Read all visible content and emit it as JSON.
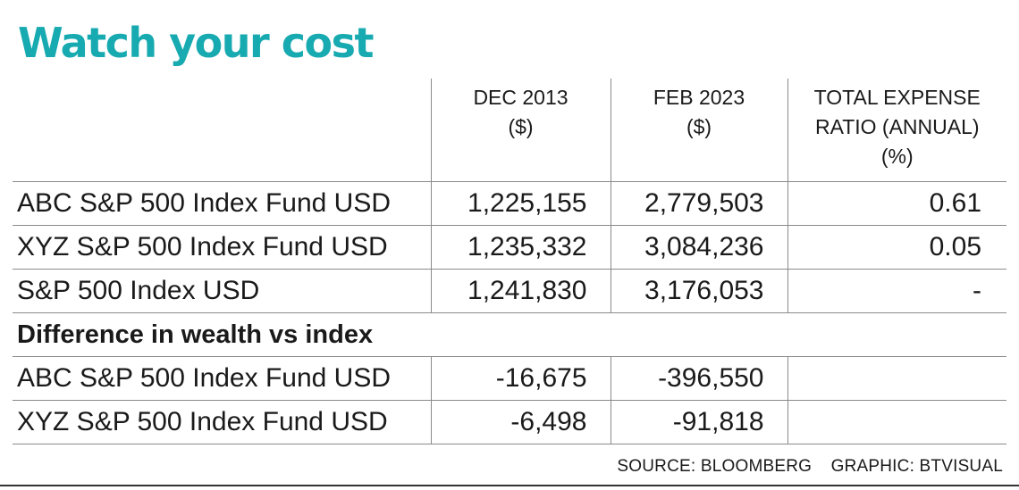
{
  "title": "Watch your cost",
  "headers": {
    "dec2013": [
      "DEC 2013",
      "($)"
    ],
    "feb2023": [
      "FEB 2023",
      "($)"
    ],
    "ter": [
      "TOTAL EXPENSE",
      "RATIO (ANNUAL)",
      "(%)"
    ]
  },
  "rows": [
    {
      "name": "ABC S&P 500 Index Fund USD",
      "dec2013": "1,225,155",
      "feb2023": "2,779,503",
      "ter": "0.61"
    },
    {
      "name": "XYZ S&P 500 Index Fund USD",
      "dec2013": "1,235,332",
      "feb2023": "3,084,236",
      "ter": "0.05"
    },
    {
      "name": "S&P 500 Index USD",
      "dec2013": "1,241,830",
      "feb2023": "3,176,053",
      "ter": "-"
    }
  ],
  "section_label": "Difference in wealth vs index",
  "diff_rows": [
    {
      "name": "ABC S&P 500 Index Fund USD",
      "dec2013": "-16,675",
      "feb2023": "-396,550",
      "ter": ""
    },
    {
      "name": "XYZ S&P 500 Index Fund USD",
      "dec2013": "-6,498",
      "feb2023": "-91,818",
      "ter": ""
    }
  ],
  "footer": {
    "source": "SOURCE: BLOOMBERG",
    "graphic": "GRAPHIC: BTVISUAL"
  },
  "colors": {
    "title": "#17aab0",
    "text": "#1a1a1a",
    "rule": "#8a8a8a"
  }
}
